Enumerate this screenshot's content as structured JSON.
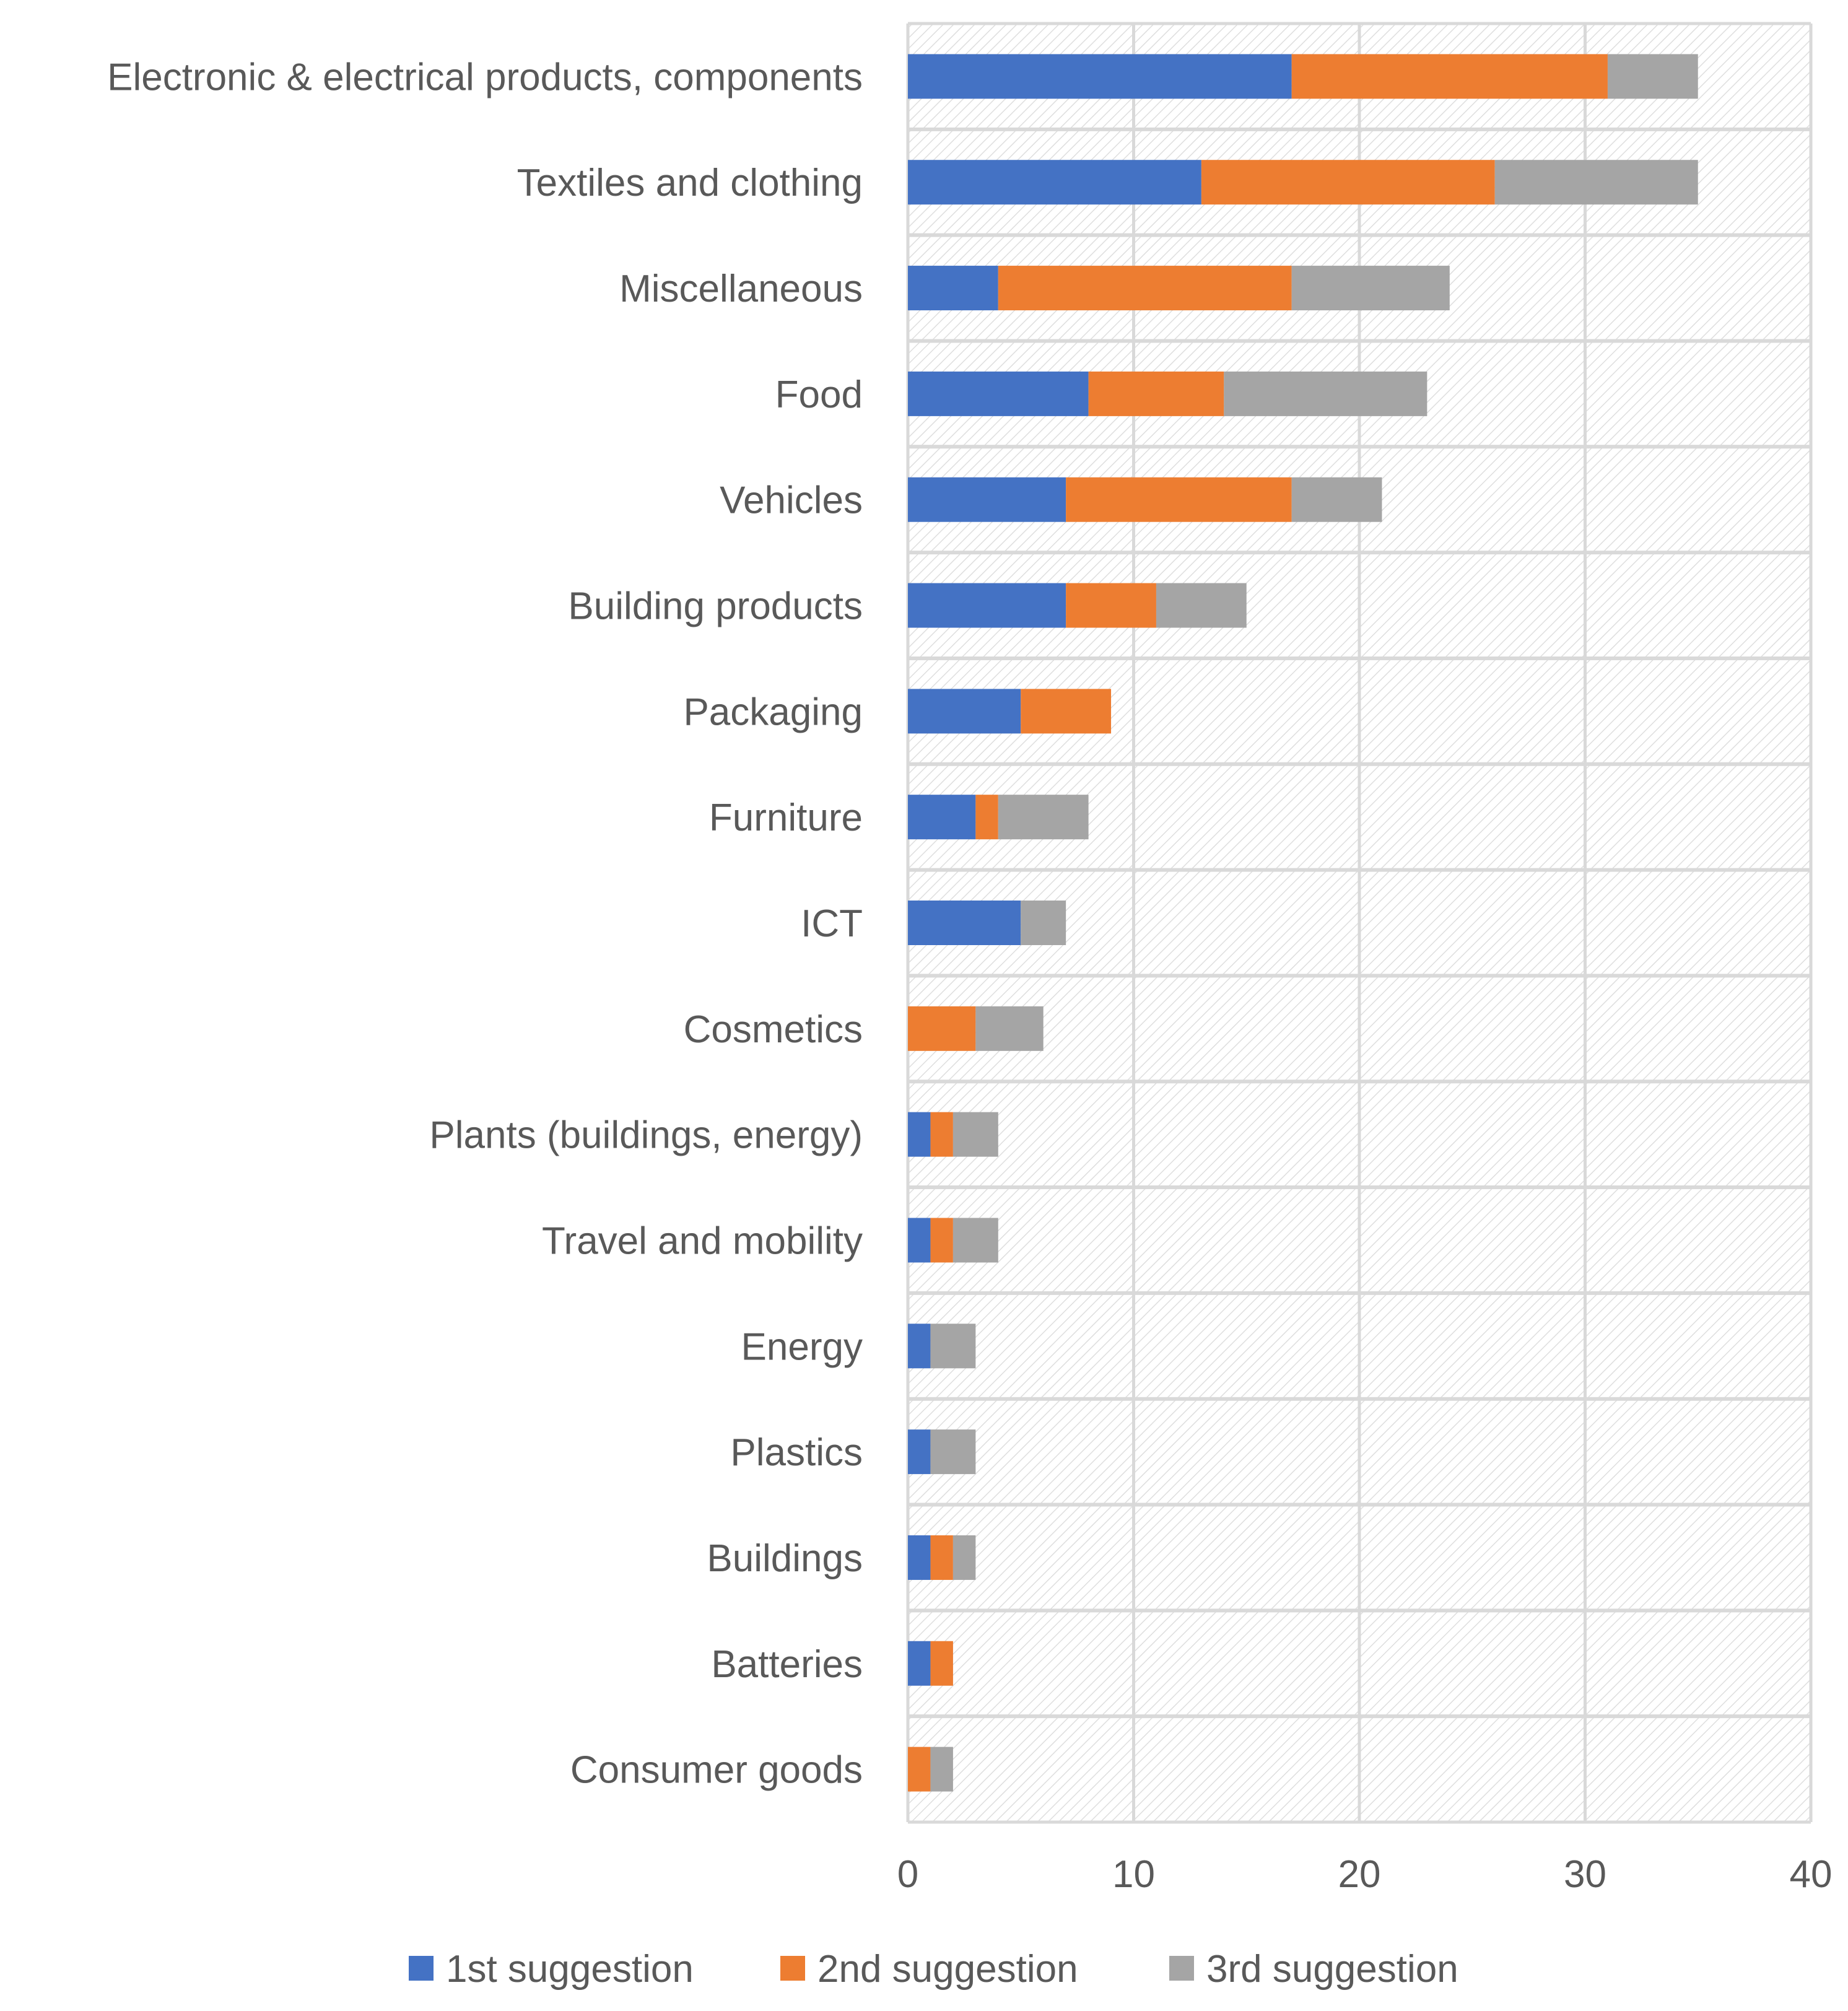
{
  "chart_data": {
    "type": "bar",
    "orientation": "horizontal",
    "stacked": true,
    "title": "",
    "xlabel": "",
    "ylabel": "",
    "xlim": [
      0,
      40
    ],
    "xticks": [
      0,
      10,
      20,
      30,
      40
    ],
    "grid": true,
    "legend_position": "bottom",
    "categories": [
      "Electronic & electrical products, components",
      "Textiles and clothing",
      "Miscellaneous",
      "Food",
      "Vehicles",
      "Building products",
      "Packaging",
      "Furniture",
      "ICT",
      "Cosmetics",
      "Plants (buildings, energy)",
      "Travel and mobility",
      "Energy",
      "Plastics",
      "Buildings",
      "Batteries",
      "Consumer goods"
    ],
    "series": [
      {
        "name": "1st suggestion",
        "color": "#4472C4",
        "values": [
          17,
          13,
          4,
          8,
          7,
          7,
          5,
          3,
          5,
          0,
          1,
          1,
          1,
          1,
          1,
          1,
          0
        ]
      },
      {
        "name": "2nd suggestion",
        "color": "#ED7D31",
        "values": [
          14,
          13,
          13,
          6,
          10,
          4,
          4,
          1,
          0,
          3,
          1,
          1,
          0,
          0,
          1,
          1,
          1
        ]
      },
      {
        "name": "3rd suggestion",
        "color": "#A5A5A5",
        "values": [
          4,
          9,
          7,
          9,
          4,
          4,
          0,
          4,
          2,
          3,
          2,
          2,
          2,
          2,
          1,
          0,
          1
        ]
      }
    ]
  }
}
